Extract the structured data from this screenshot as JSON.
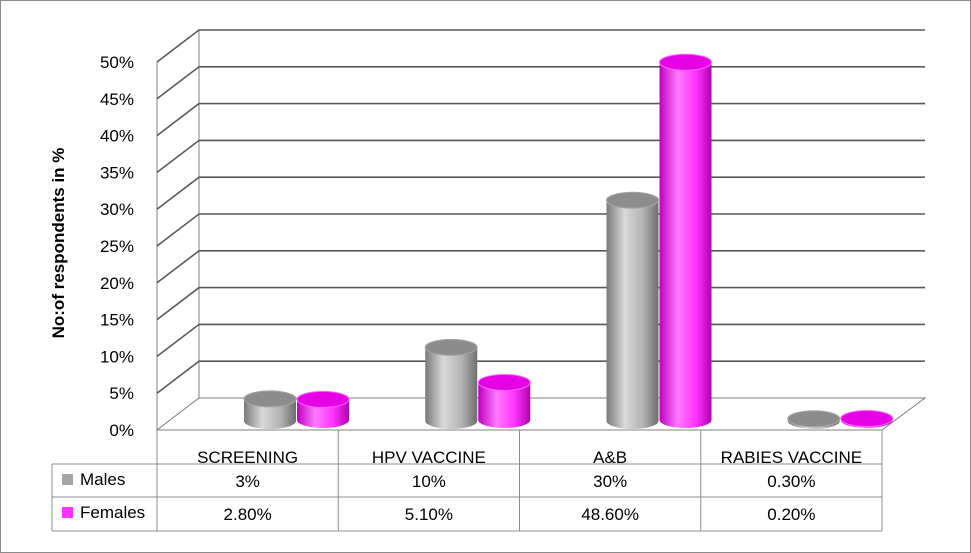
{
  "chart_data": {
    "type": "bar",
    "ylabel": "No:of respondents in %",
    "ylim": [
      0,
      50
    ],
    "yticks": [
      "0%",
      "5%",
      "10%",
      "15%",
      "20%",
      "25%",
      "30%",
      "35%",
      "40%",
      "45%",
      "50%"
    ],
    "categories": [
      "SCREENING",
      "HPV VACCINE",
      "A&B",
      "RABIES VACCINE"
    ],
    "series": [
      {
        "name": "Males",
        "values": [
          3,
          10,
          30,
          0.3
        ],
        "labels": [
          "3%",
          "10%",
          "30%",
          "0.30%"
        ],
        "color": "#a6a6a6"
      },
      {
        "name": "Females",
        "values": [
          2.8,
          5.1,
          48.6,
          0.2
        ],
        "labels": [
          "2.80%",
          "5.10%",
          "48.60%",
          "0.20%"
        ],
        "color": "#ff33ff"
      }
    ],
    "grid": true,
    "legend": "data-table"
  }
}
